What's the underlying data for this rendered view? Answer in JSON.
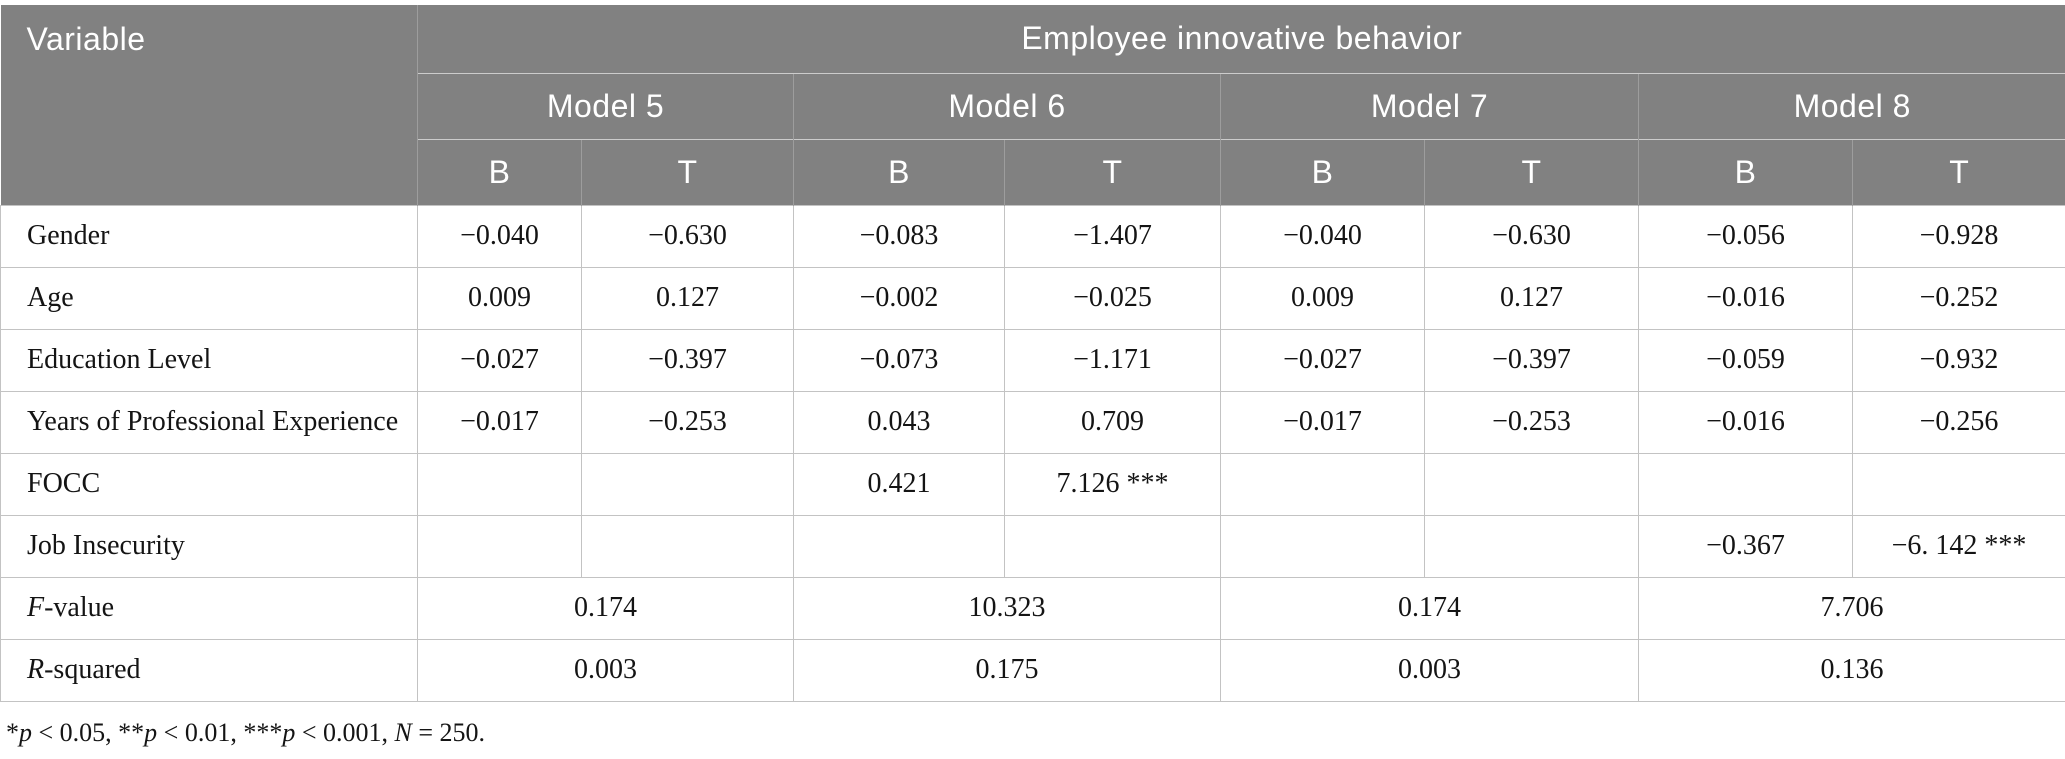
{
  "table": {
    "header": {
      "variable_label": "Variable",
      "group_label": "Employee innovative behavior",
      "models": [
        "Model 5",
        "Model 6",
        "Model 7",
        "Model 8"
      ],
      "stat_cols": [
        "B",
        "T",
        "B",
        "T",
        "B",
        "T",
        "B",
        "T"
      ]
    },
    "rows": [
      {
        "label": "Gender",
        "cells": [
          "−0.040",
          "−0.630",
          "−0.083",
          "−1.407",
          "−0.040",
          "−0.630",
          "−0.056",
          "−0.928"
        ]
      },
      {
        "label": "Age",
        "cells": [
          "0.009",
          "0.127",
          "−0.002",
          "−0.025",
          "0.009",
          "0.127",
          "−0.016",
          "−0.252"
        ]
      },
      {
        "label": "Education Level",
        "cells": [
          "−0.027",
          "−0.397",
          "−0.073",
          "−1.171",
          "−0.027",
          "−0.397",
          "−0.059",
          "−0.932"
        ]
      },
      {
        "label": "Years of Professional Experience",
        "cells": [
          "−0.017",
          "−0.253",
          "0.043",
          "0.709",
          "−0.017",
          "−0.253",
          "−0.016",
          "−0.256"
        ]
      },
      {
        "label": "FOCC",
        "cells": [
          "",
          "",
          "0.421",
          "7.126 ***",
          "",
          "",
          "",
          ""
        ]
      },
      {
        "label": "Job Insecurity",
        "cells": [
          "",
          "",
          "",
          "",
          "",
          "",
          "−0.367",
          "−6. 142 ***"
        ]
      }
    ],
    "summary_rows": [
      {
        "label_segments": [
          {
            "t": "F",
            "i": true
          },
          {
            "t": "-value",
            "i": false
          }
        ],
        "values": [
          "0.174",
          "10.323",
          "0.174",
          "7.706"
        ]
      },
      {
        "label_segments": [
          {
            "t": "R",
            "i": true
          },
          {
            "t": "-squared",
            "i": false
          }
        ],
        "values": [
          "0.003",
          "0.175",
          "0.003",
          "0.136"
        ]
      }
    ],
    "footnote_segments": [
      {
        "t": "*",
        "i": false
      },
      {
        "t": "p",
        "i": true
      },
      {
        "t": " < 0.05, **",
        "i": false
      },
      {
        "t": "p",
        "i": true
      },
      {
        "t": " < 0.01, ***",
        "i": false
      },
      {
        "t": "p",
        "i": true
      },
      {
        "t": " < 0.001, ",
        "i": false
      },
      {
        "t": "N",
        "i": true
      },
      {
        "t": " = 250.",
        "i": false
      }
    ]
  },
  "colors": {
    "header_bg": "#818181",
    "header_text": "#ffffff",
    "grid_line": "#c3c3c3",
    "body_text": "#141414"
  }
}
